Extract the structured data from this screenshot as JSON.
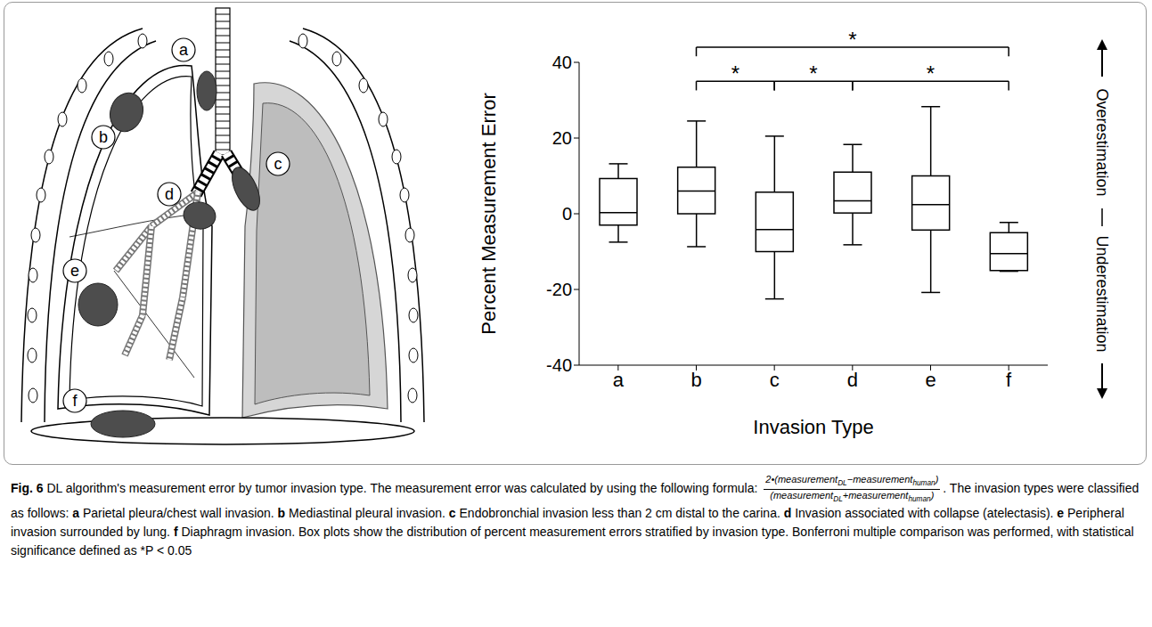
{
  "chart_data": {
    "type": "box",
    "x_label": "Invasion Type",
    "y_label": "Percent Measurement Error",
    "categories": [
      "a",
      "b",
      "c",
      "d",
      "e",
      "f"
    ],
    "whisker_low": [
      -7.5,
      -8.7,
      -22.5,
      -8.2,
      -20.8,
      -15.2
    ],
    "q1": [
      -3,
      0,
      -10,
      0.2,
      -4.3,
      -15
    ],
    "median": [
      0.3,
      6,
      -4.2,
      3.4,
      2.4,
      -10.5
    ],
    "q3": [
      9.3,
      12.3,
      5.7,
      11,
      10,
      -5
    ],
    "whisker_high": [
      13.2,
      24.5,
      20.5,
      18.3,
      28.3,
      -2.3
    ],
    "ylim": [
      -40,
      40
    ],
    "yticks": [
      -40,
      -20,
      0,
      20,
      40
    ],
    "color": "#000000",
    "comparisons": [
      {
        "from": "b",
        "to": "f",
        "label": "*"
      },
      {
        "from": "b",
        "to": "c",
        "label": "*"
      },
      {
        "from": "c",
        "to": "d",
        "label": "*"
      },
      {
        "from": "d",
        "to": "f",
        "label": "*"
      }
    ],
    "annotations": {
      "over": "Overestimation",
      "under": "Underestimation"
    }
  },
  "diagram": {
    "labels": [
      "a",
      "b",
      "c",
      "d",
      "e",
      "f"
    ]
  },
  "caption": {
    "label": "Fig. 6",
    "lead": "DL algorithm's measurement error by tumor invasion type. The measurement error was calculated by using the following formula:",
    "formula": {
      "numerator": [
        {
          "t": "2•(measurement"
        },
        {
          "sub": "DL"
        },
        {
          "t": "−measurement"
        },
        {
          "sub": "human"
        },
        {
          "t": ")"
        }
      ],
      "denominator": [
        {
          "t": "(measurement"
        },
        {
          "sub": "DL"
        },
        {
          "t": "+measurement"
        },
        {
          "sub": "human"
        },
        {
          "t": ")"
        }
      ]
    },
    "middle": ". The invasion types were classified as follows:",
    "items": [
      {
        "key": "a",
        "text": "Parietal pleura/chest wall invasion."
      },
      {
        "key": "b",
        "text": "Mediastinal pleural invasion."
      },
      {
        "key": "c",
        "text": "Endobronchial invasion less than 2 cm distal to the carina."
      },
      {
        "key": "d",
        "text": "Invasion associated with collapse (atelectasis)."
      },
      {
        "key": "e",
        "text": "Peripheral invasion surrounded by lung."
      },
      {
        "key": "f",
        "text": "Diaphragm invasion."
      }
    ],
    "tail": "Box plots show the distribution of percent measurement errors stratified by invasion type. Bonferroni multiple comparison was performed, with statistical significance defined as *P < 0.05"
  }
}
